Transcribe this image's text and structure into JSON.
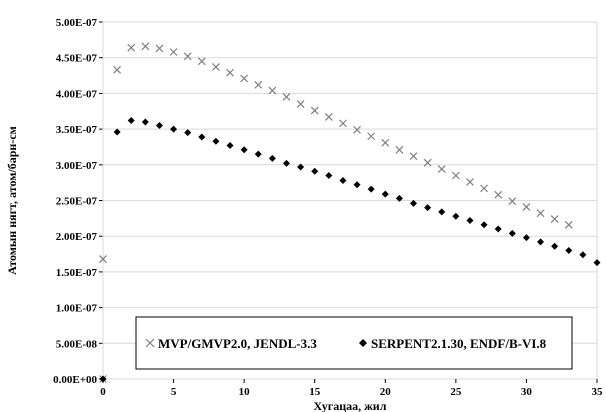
{
  "chart_data": {
    "type": "scatter",
    "xlabel": "Хугацаа, жил",
    "ylabel": "Атомын нягт, атом/барн-см",
    "xlim": [
      0,
      35
    ],
    "ylim": [
      0,
      5e-07
    ],
    "x_ticks": [
      "0",
      "5",
      "10",
      "15",
      "20",
      "25",
      "30",
      "35"
    ],
    "y_ticks": [
      "0.00E+00",
      "5.00E-08",
      "1.00E-07",
      "1.50E-07",
      "2.00E-07",
      "2.50E-07",
      "3.00E-07",
      "3.50E-07",
      "4.00E-07",
      "4.50E-07",
      "5.00E-07"
    ],
    "grid": "horizontal",
    "legend_position": "bottom-center",
    "series": [
      {
        "name": "MVP/GMVP2.0, JENDL-3.3",
        "marker": "x",
        "color": "#7f7f7f",
        "points": [
          [
            0,
            1.68e-07
          ],
          [
            0,
            0
          ],
          [
            1,
            4.33e-07
          ],
          [
            2,
            4.64e-07
          ],
          [
            3,
            4.66e-07
          ],
          [
            4,
            4.63e-07
          ],
          [
            5,
            4.58e-07
          ],
          [
            6,
            4.52e-07
          ],
          [
            7,
            4.45e-07
          ],
          [
            8,
            4.37e-07
          ],
          [
            9,
            4.29e-07
          ],
          [
            10,
            4.21e-07
          ],
          [
            11,
            4.12e-07
          ],
          [
            12,
            4.04e-07
          ],
          [
            13,
            3.95e-07
          ],
          [
            14,
            3.85e-07
          ],
          [
            15,
            3.76e-07
          ],
          [
            16,
            3.67e-07
          ],
          [
            17,
            3.58e-07
          ],
          [
            18,
            3.49e-07
          ],
          [
            19,
            3.4e-07
          ],
          [
            20,
            3.31e-07
          ],
          [
            21,
            3.21e-07
          ],
          [
            22,
            3.12e-07
          ],
          [
            23,
            3.03e-07
          ],
          [
            24,
            2.94e-07
          ],
          [
            25,
            2.85e-07
          ],
          [
            26,
            2.76e-07
          ],
          [
            27,
            2.67e-07
          ],
          [
            28,
            2.58e-07
          ],
          [
            29,
            2.49e-07
          ],
          [
            30,
            2.41e-07
          ],
          [
            31,
            2.32e-07
          ],
          [
            32,
            2.24e-07
          ],
          [
            33,
            2.16e-07
          ]
        ]
      },
      {
        "name": "SERPENT2.1.30, ENDF/B-VI.8",
        "marker": "diamond",
        "color": "#000000",
        "points": [
          [
            0,
            0
          ],
          [
            1,
            3.46e-07
          ],
          [
            2,
            3.62e-07
          ],
          [
            3,
            3.6e-07
          ],
          [
            4,
            3.55e-07
          ],
          [
            5,
            3.5e-07
          ],
          [
            6,
            3.45e-07
          ],
          [
            7,
            3.39e-07
          ],
          [
            8,
            3.33e-07
          ],
          [
            9,
            3.27e-07
          ],
          [
            10,
            3.21e-07
          ],
          [
            11,
            3.15e-07
          ],
          [
            12,
            3.09e-07
          ],
          [
            13,
            3.02e-07
          ],
          [
            14,
            2.97e-07
          ],
          [
            15,
            2.91e-07
          ],
          [
            16,
            2.85e-07
          ],
          [
            17,
            2.78e-07
          ],
          [
            18,
            2.72e-07
          ],
          [
            19,
            2.66e-07
          ],
          [
            20,
            2.59e-07
          ],
          [
            21,
            2.53e-07
          ],
          [
            22,
            2.46e-07
          ],
          [
            23,
            2.4e-07
          ],
          [
            24,
            2.34e-07
          ],
          [
            25,
            2.28e-07
          ],
          [
            26,
            2.22e-07
          ],
          [
            27,
            2.16e-07
          ],
          [
            28,
            2.1e-07
          ],
          [
            29,
            2.04e-07
          ],
          [
            30,
            1.98e-07
          ],
          [
            31,
            1.92e-07
          ],
          [
            32,
            1.86e-07
          ],
          [
            33,
            1.8e-07
          ],
          [
            34,
            1.74e-07
          ],
          [
            35,
            1.63e-07
          ]
        ]
      }
    ]
  }
}
